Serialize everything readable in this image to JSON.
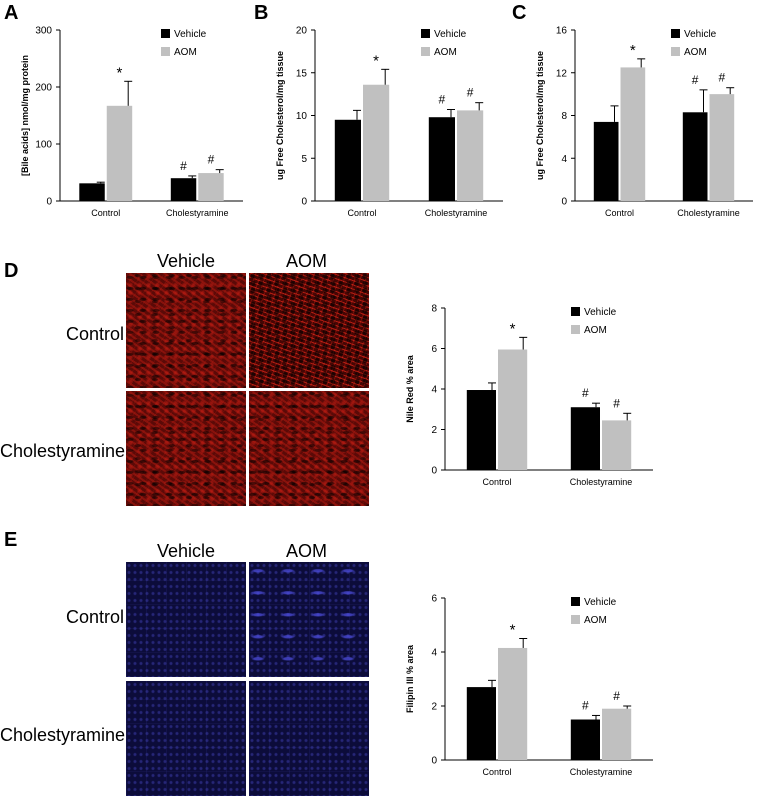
{
  "figure": {
    "panels": {
      "A": "A",
      "B": "B",
      "C": "C",
      "D": "D",
      "E": "E"
    },
    "micrographs": {
      "D": {
        "col_labels": [
          "Vehicle",
          "AOM"
        ],
        "row_labels": [
          "Control",
          "Cholestyramine"
        ],
        "stain_color": "#c81e14"
      },
      "E": {
        "col_labels": [
          "Vehicle",
          "AOM"
        ],
        "row_labels": [
          "Control",
          "Cholestyramine"
        ],
        "stain_color": "#3a3ad0"
      }
    }
  },
  "chart_data": [
    {
      "panel": "A",
      "type": "bar",
      "categories": [
        "Control",
        "Cholestyramine"
      ],
      "series": [
        {
          "name": "Vehicle",
          "color": "#000000",
          "values": [
            31,
            40
          ],
          "errors": [
            2,
            4
          ],
          "marks": [
            "",
            "#"
          ]
        },
        {
          "name": "AOM",
          "color": "#c0c0c0",
          "values": [
            167,
            49
          ],
          "errors": [
            43,
            6
          ],
          "marks": [
            "*",
            "#"
          ]
        }
      ],
      "ylabel": "[Bile acids] nmol/mg protein",
      "ylim": [
        0,
        300
      ],
      "yticks": [
        0,
        100,
        200,
        300
      ],
      "legend": "top-right",
      "grid": false
    },
    {
      "panel": "B",
      "type": "bar",
      "categories": [
        "Control",
        "Cholestyramine"
      ],
      "series": [
        {
          "name": "Vehicle",
          "color": "#000000",
          "values": [
            9.5,
            9.8
          ],
          "errors": [
            1.1,
            0.9
          ],
          "marks": [
            "",
            "#"
          ]
        },
        {
          "name": "AOM",
          "color": "#c0c0c0",
          "values": [
            13.6,
            10.6
          ],
          "errors": [
            1.8,
            0.9
          ],
          "marks": [
            "*",
            "#"
          ]
        }
      ],
      "ylabel": "ug Free Cholesterol/mg tissue",
      "ylim": [
        0,
        20
      ],
      "yticks": [
        0,
        5,
        10,
        15,
        20
      ],
      "legend": "top-right",
      "grid": false
    },
    {
      "panel": "C",
      "type": "bar",
      "categories": [
        "Control",
        "Cholestyramine"
      ],
      "series": [
        {
          "name": "Vehicle",
          "color": "#000000",
          "values": [
            7.4,
            8.3
          ],
          "errors": [
            1.5,
            2.1
          ],
          "marks": [
            "",
            "#"
          ]
        },
        {
          "name": "AOM",
          "color": "#c0c0c0",
          "values": [
            12.5,
            10.0
          ],
          "errors": [
            0.8,
            0.6
          ],
          "marks": [
            "*",
            "#"
          ]
        }
      ],
      "ylabel": "ug Free Cholesterol/mg tissue",
      "ylim": [
        0,
        16
      ],
      "yticks": [
        0,
        4,
        8,
        12,
        16
      ],
      "legend": "top-right",
      "grid": false
    },
    {
      "panel": "D",
      "type": "bar",
      "categories": [
        "Control",
        "Cholestyramine"
      ],
      "series": [
        {
          "name": "Vehicle",
          "color": "#000000",
          "values": [
            3.95,
            3.1
          ],
          "errors": [
            0.35,
            0.2
          ],
          "marks": [
            "",
            "#"
          ]
        },
        {
          "name": "AOM",
          "color": "#c0c0c0",
          "values": [
            5.95,
            2.45
          ],
          "errors": [
            0.6,
            0.35
          ],
          "marks": [
            "*",
            "#"
          ]
        }
      ],
      "ylabel": "Nile Red % area",
      "ylim": [
        0,
        8
      ],
      "yticks": [
        0,
        2,
        4,
        6,
        8
      ],
      "legend": "top-right",
      "grid": false
    },
    {
      "panel": "E",
      "type": "bar",
      "categories": [
        "Control",
        "Cholestyramine"
      ],
      "series": [
        {
          "name": "Vehicle",
          "color": "#000000",
          "values": [
            2.7,
            1.5
          ],
          "errors": [
            0.25,
            0.15
          ],
          "marks": [
            "",
            "#"
          ]
        },
        {
          "name": "AOM",
          "color": "#c0c0c0",
          "values": [
            4.15,
            1.9
          ],
          "errors": [
            0.35,
            0.1
          ],
          "marks": [
            "*",
            "#"
          ]
        }
      ],
      "ylabel": "Filipin III % area",
      "ylim": [
        0,
        6
      ],
      "yticks": [
        0,
        2,
        4,
        6
      ],
      "legend": "top-right",
      "grid": false
    }
  ]
}
